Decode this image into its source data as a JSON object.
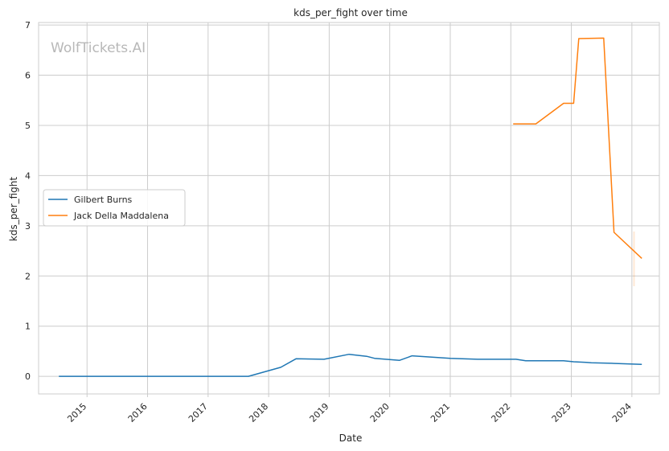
{
  "watermark": "WolfTickets.AI",
  "chart_data": {
    "type": "line",
    "title": "kds_per_fight over time",
    "xlabel": "Date",
    "ylabel": "kds_per_fight",
    "x_ticks": [
      "2015",
      "2016",
      "2017",
      "2018",
      "2019",
      "2020",
      "2021",
      "2022",
      "2023",
      "2024"
    ],
    "y_ticks": [
      0,
      1,
      2,
      3,
      4,
      5,
      6,
      7
    ],
    "xlim": [
      "2014-03-15",
      "2024-06-15"
    ],
    "ylim": [
      -0.35,
      7.05
    ],
    "grid": true,
    "legend_position": "center-left",
    "series": [
      {
        "name": "Gilbert Burns",
        "color": "#1f77b4",
        "points": [
          [
            "2014-07-15",
            0.0
          ],
          [
            "2015-03-01",
            0.0
          ],
          [
            "2016-01-15",
            0.0
          ],
          [
            "2016-09-01",
            0.0
          ],
          [
            "2017-09-01",
            0.0
          ],
          [
            "2018-03-15",
            0.18
          ],
          [
            "2018-06-15",
            0.35
          ],
          [
            "2018-12-01",
            0.34
          ],
          [
            "2019-05-01",
            0.44
          ],
          [
            "2019-08-15",
            0.4
          ],
          [
            "2019-10-01",
            0.36
          ],
          [
            "2020-03-01",
            0.32
          ],
          [
            "2020-05-15",
            0.41
          ],
          [
            "2021-01-01",
            0.36
          ],
          [
            "2021-06-15",
            0.34
          ],
          [
            "2022-02-01",
            0.34
          ],
          [
            "2022-04-01",
            0.31
          ],
          [
            "2022-11-15",
            0.31
          ],
          [
            "2023-01-15",
            0.29
          ],
          [
            "2023-04-01",
            0.28
          ],
          [
            "2023-05-01",
            0.27
          ],
          [
            "2023-09-01",
            0.26
          ],
          [
            "2024-03-01",
            0.24
          ]
        ]
      },
      {
        "name": "Jack Della Maddalena",
        "color": "#ff7f0e",
        "points": [
          [
            "2022-01-15",
            5.03
          ],
          [
            "2022-06-01",
            5.03
          ],
          [
            "2022-11-15",
            5.44
          ],
          [
            "2023-01-15",
            5.44
          ],
          [
            "2023-02-15",
            6.73
          ],
          [
            "2023-07-15",
            6.74
          ],
          [
            "2023-09-15",
            2.87
          ],
          [
            "2024-03-01",
            2.35
          ]
        ]
      }
    ]
  }
}
